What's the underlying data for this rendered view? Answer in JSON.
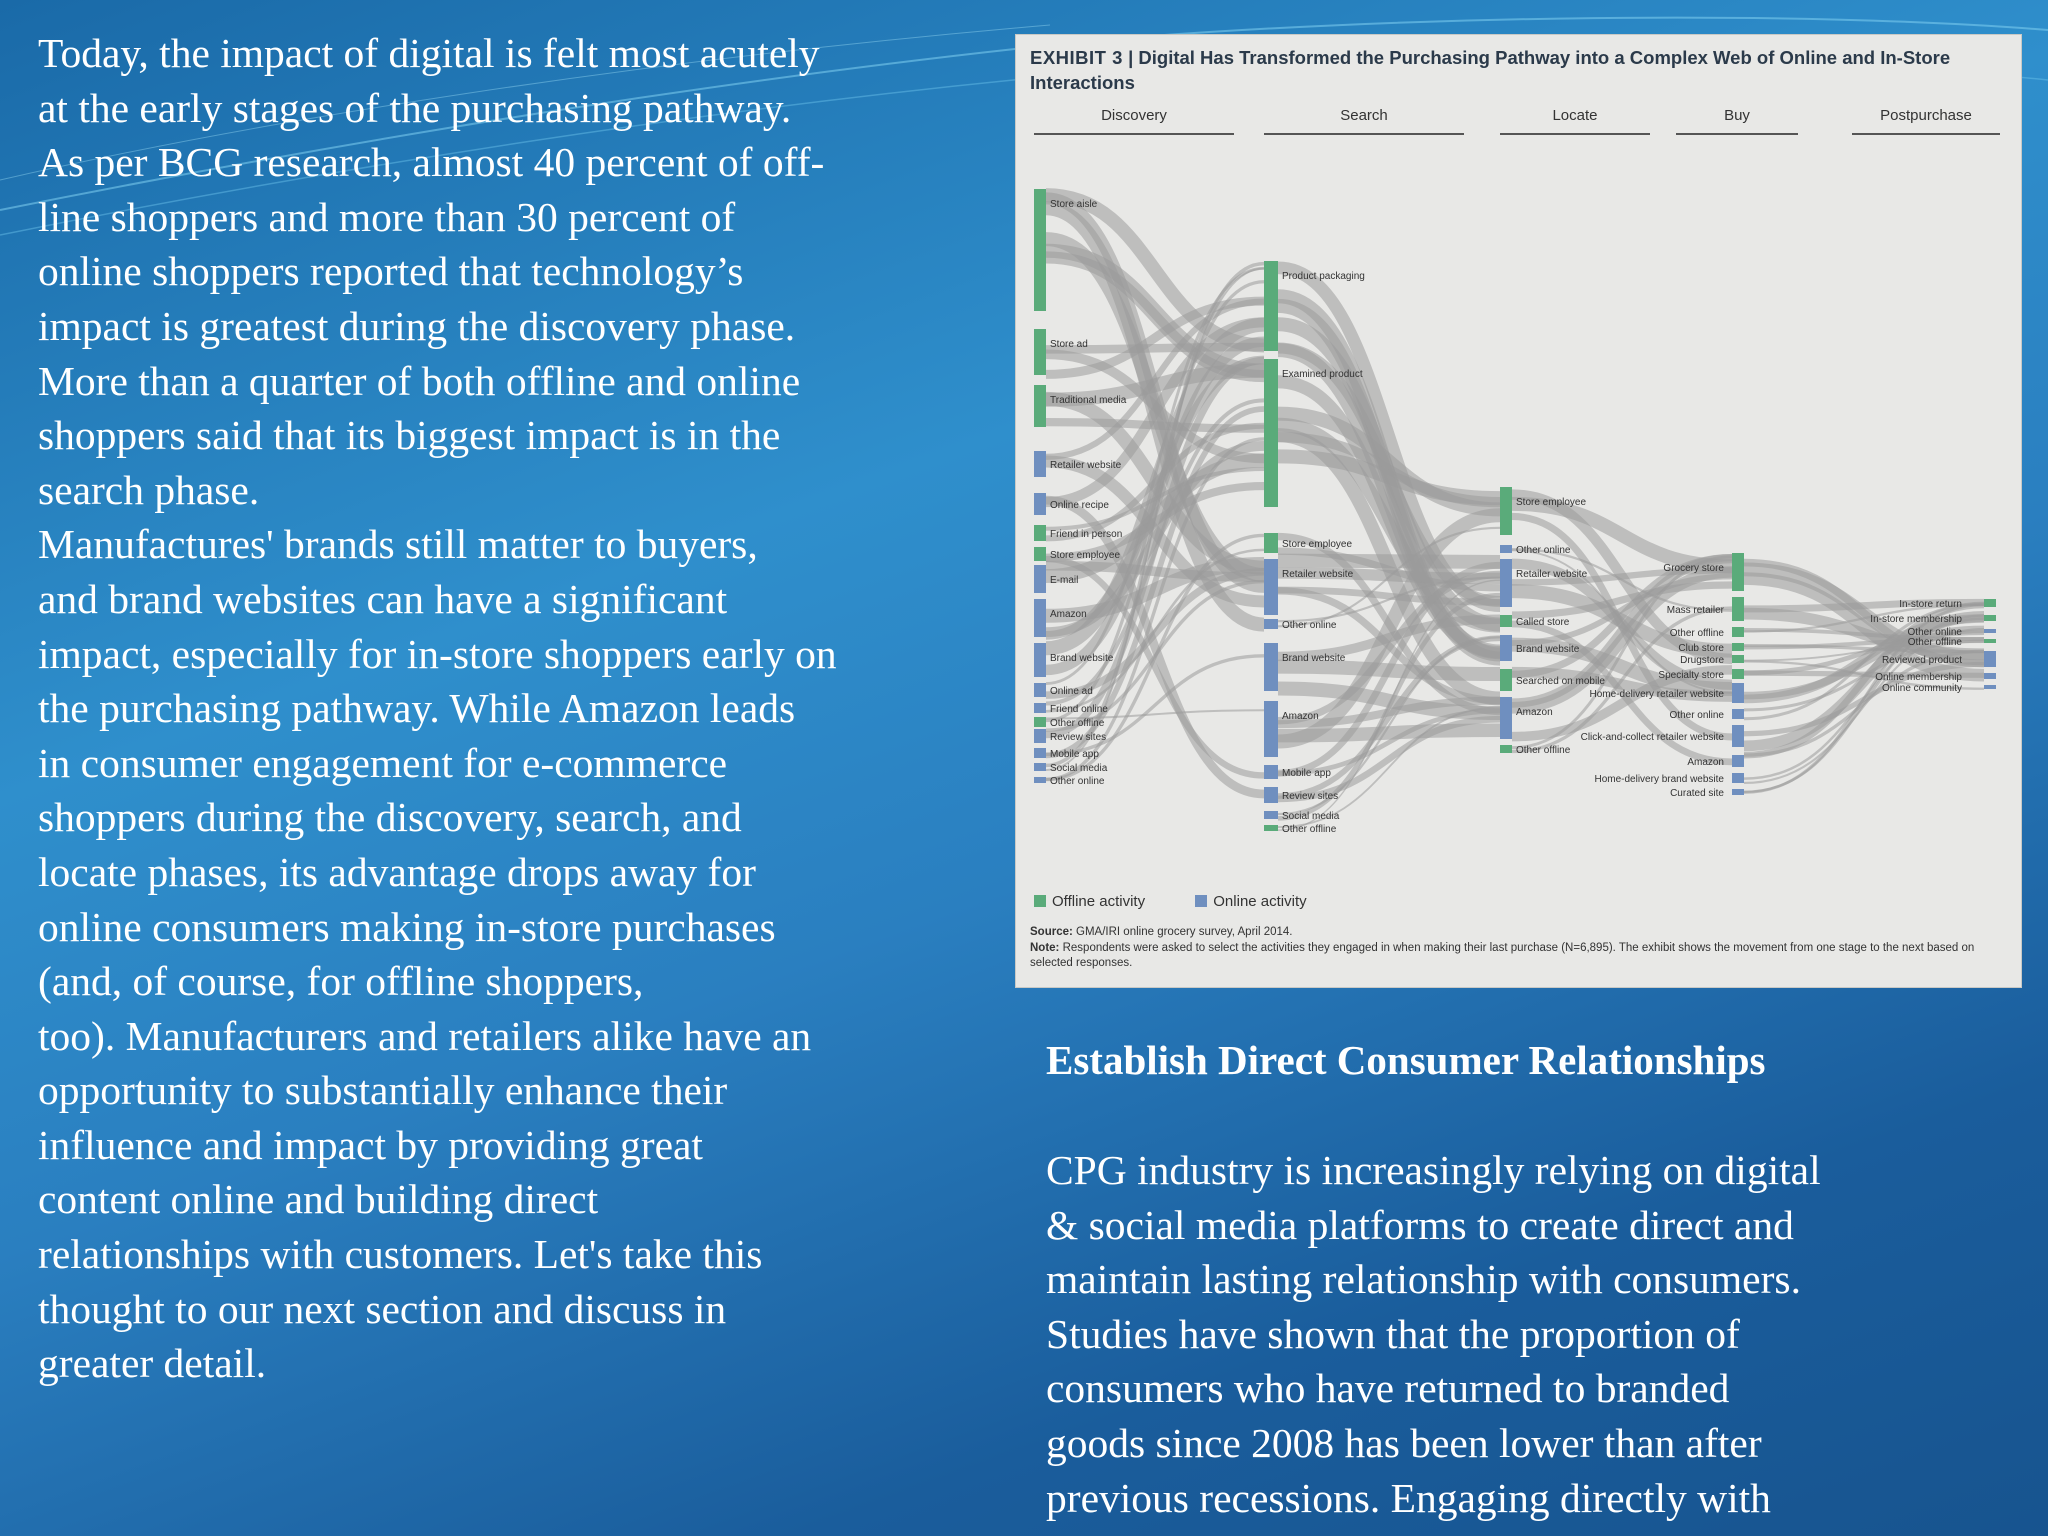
{
  "left_text": "Today, the impact of digital is felt most acutely\nat the early stages of the purchasing pathway.\nAs per BCG research, almost 40 percent of off-\nline shoppers and more than 30 percent of\nonline shoppers reported that technology’s\nimpact is greatest during the discovery phase.\nMore than a quarter of both offline and online\nshoppers said that its biggest impact is in the\nsearch phase.\nManufactures' brands still matter to buyers,\nand brand websites can have a significant\nimpact, especially for in-store shoppers early on\nthe purchasing pathway. While Amazon leads\nin consumer engagement for e-commerce\nshoppers during the discovery, search, and\nlocate phases, its advantage drops away for\nonline consumers making in-store purchases\n(and, of course, for offline shoppers,\ntoo). Manufacturers and retailers alike have an\nopportunity to substantially enhance their\ninfluence and impact by providing great\ncontent online and building direct\nrelationships with customers. Let's take this\nthought to our next section and discuss in\ngreater detail.",
  "exhibit": {
    "label": "EXHIBIT 3",
    "title": "Digital Has Transformed the Purchasing Pathway into a Complex Web of Online and In-Store Interactions",
    "stages": [
      "Discovery",
      "Search",
      "Locate",
      "Buy",
      "Postpurchase"
    ],
    "legend": {
      "offline": "Offline activity",
      "online": "Online activity"
    },
    "source_label": "Source:",
    "source": "GMA/IRI online grocery survey, April 2014.",
    "note_label": "Note:",
    "note": "Respondents were asked to select the activities they engaged in when making their last purchase (N=6,895). The exhibit shows the movement from one stage to the next based on selected responses.",
    "colors": {
      "offline": "#5aab7a",
      "online": "#6f8fbf",
      "flow": "#9a9a9a"
    },
    "nodes": {
      "discovery": [
        "Store aisle",
        "Store ad",
        "Traditional media",
        "Retailer website",
        "Online recipe",
        "Friend in person",
        "Store employee",
        "E-mail",
        "Amazon",
        "Brand website",
        "Online ad",
        "Friend online",
        "Other offline",
        "Review sites",
        "Mobile app",
        "Social media",
        "Other online"
      ],
      "search": [
        "Product packaging",
        "Examined product",
        "Store employee",
        "Retailer website",
        "Other online",
        "Brand website",
        "Amazon",
        "Mobile app",
        "Review sites",
        "Social media",
        "Other offline"
      ],
      "locate": [
        "Store employee",
        "Other online",
        "Retailer website",
        "Called store",
        "Brand website",
        "Searched on mobile",
        "Amazon",
        "Other offline"
      ],
      "buy": [
        "Grocery store",
        "Mass retailer",
        "Other offline",
        "Club store",
        "Drugstore",
        "Specialty store",
        "Home-delivery retailer website",
        "Other online",
        "Click-and-collect retailer website",
        "Amazon",
        "Home-delivery brand website",
        "Curated site"
      ],
      "postpurchase": [
        "In-store return",
        "In-store membership",
        "Other online",
        "Other offline",
        "Reviewed product",
        "Online membership",
        "Online community"
      ]
    }
  },
  "section_heading": "Establish Direct Consumer Relationships",
  "right_text": "CPG industry is increasingly relying on digital\n& social media platforms to create direct and\nmaintain lasting relationship with consumers.\nStudies have shown that the proportion of\nconsumers who have returned to branded\ngoods since 2008 has been lower than after\nprevious recessions. Engaging directly with"
}
